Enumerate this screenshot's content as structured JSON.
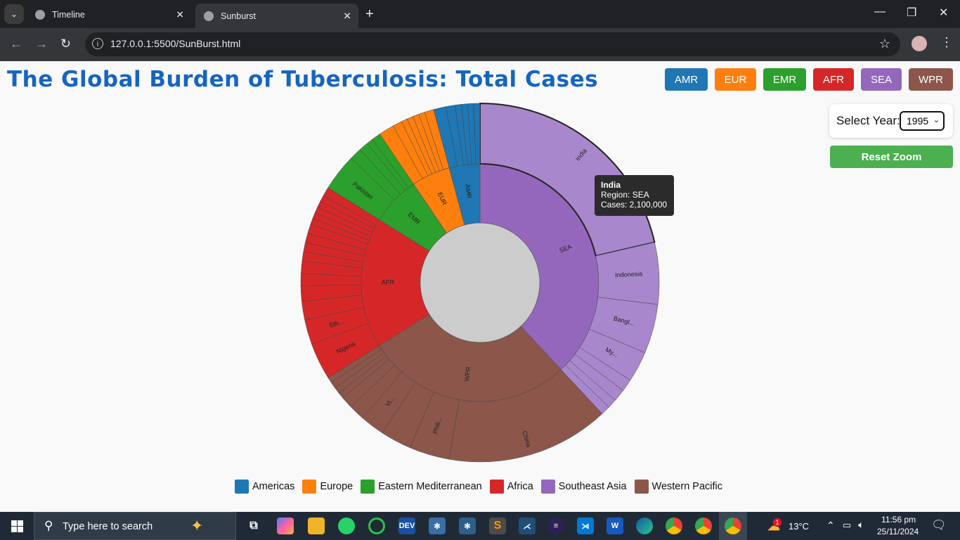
{
  "browser": {
    "tabs": [
      {
        "label": "Timeline",
        "active": false
      },
      {
        "label": "Sunburst",
        "active": true
      }
    ],
    "url": "127.0.0.1:5500/SunBurst.html"
  },
  "page": {
    "title": "The Global Burden of Tuberculosis: Total Cases",
    "region_buttons": [
      {
        "label": "AMR",
        "color": "#1f77b4"
      },
      {
        "label": "EUR",
        "color": "#ff7f0e"
      },
      {
        "label": "EMR",
        "color": "#2ca02c"
      },
      {
        "label": "AFR",
        "color": "#d62728"
      },
      {
        "label": "SEA",
        "color": "#9467bd"
      },
      {
        "label": "WPR",
        "color": "#8c564b"
      }
    ],
    "year_label": "Select Year:",
    "year_value": "1995",
    "reset_label": "Reset Zoom",
    "tooltip": {
      "name": "India",
      "region": "Region: SEA",
      "cases": "Cases: 2,100,000"
    },
    "legend": [
      {
        "label": "Americas",
        "color": "#1f77b4"
      },
      {
        "label": "Europe",
        "color": "#ff7f0e"
      },
      {
        "label": "Eastern Mediterranean",
        "color": "#2ca02c"
      },
      {
        "label": "Africa",
        "color": "#d62728"
      },
      {
        "label": "Southeast Asia",
        "color": "#9467bd"
      },
      {
        "label": "Western Pacific",
        "color": "#8c564b"
      }
    ]
  },
  "chart_data": {
    "type": "sunburst",
    "center_color": "#cccccc",
    "regions": [
      {
        "name": "SEA",
        "color": "#9467bd",
        "leaf_color": "#a987cc",
        "start_deg": 0,
        "end_deg": 137,
        "countries": [
          {
            "name": "India",
            "start": 0,
            "end": 77,
            "highlight": true
          },
          {
            "name": "Indonesia",
            "start": 77,
            "end": 97
          },
          {
            "name": "Bangl...",
            "start": 97,
            "end": 113
          },
          {
            "name": "My...",
            "start": 113,
            "end": 123
          },
          {
            "name": "",
            "start": 123,
            "end": 127
          },
          {
            "name": "",
            "start": 127,
            "end": 131
          },
          {
            "name": "",
            "start": 131,
            "end": 134
          },
          {
            "name": "",
            "start": 134,
            "end": 137
          }
        ]
      },
      {
        "name": "WPR",
        "color": "#8c564b",
        "leaf_color": "#8c564b",
        "start_deg": 137,
        "end_deg": 238,
        "countries": [
          {
            "name": "China",
            "start": 137,
            "end": 190
          },
          {
            "name": "Phili...",
            "start": 190,
            "end": 203
          },
          {
            "name": "",
            "start": 203,
            "end": 213
          },
          {
            "name": "Vi...",
            "start": 213,
            "end": 221
          },
          {
            "name": "",
            "start": 221,
            "end": 226
          },
          {
            "name": "",
            "start": 226,
            "end": 230
          },
          {
            "name": "",
            "start": 230,
            "end": 232
          },
          {
            "name": "",
            "start": 232,
            "end": 234
          },
          {
            "name": "",
            "start": 234,
            "end": 236
          },
          {
            "name": "",
            "start": 236,
            "end": 238
          }
        ]
      },
      {
        "name": "AFR",
        "color": "#d62728",
        "leaf_color": "#d62728",
        "start_deg": 238,
        "end_deg": 302,
        "countries": [
          {
            "name": "Nigeria",
            "start": 238,
            "end": 250
          },
          {
            "name": "Eth...",
            "start": 250,
            "end": 258
          },
          {
            "name": "",
            "start": 258,
            "end": 264
          },
          {
            "name": "",
            "start": 264,
            "end": 269
          },
          {
            "name": "",
            "start": 269,
            "end": 273
          },
          {
            "name": "",
            "start": 273,
            "end": 277
          },
          {
            "name": "",
            "start": 277,
            "end": 280
          },
          {
            "name": "",
            "start": 280,
            "end": 283
          },
          {
            "name": "",
            "start": 283,
            "end": 286
          },
          {
            "name": "",
            "start": 286,
            "end": 289
          },
          {
            "name": "",
            "start": 289,
            "end": 291
          },
          {
            "name": "",
            "start": 291,
            "end": 293
          },
          {
            "name": "",
            "start": 293,
            "end": 295
          },
          {
            "name": "",
            "start": 295,
            "end": 297
          },
          {
            "name": "",
            "start": 297,
            "end": 299
          },
          {
            "name": "",
            "start": 299,
            "end": 302
          }
        ]
      },
      {
        "name": "EMR",
        "color": "#2ca02c",
        "leaf_color": "#2ca02c",
        "start_deg": 302,
        "end_deg": 326,
        "countries": [
          {
            "name": "Pakistan",
            "start": 302,
            "end": 314
          },
          {
            "name": "",
            "start": 314,
            "end": 318
          },
          {
            "name": "",
            "start": 318,
            "end": 321
          },
          {
            "name": "",
            "start": 321,
            "end": 323
          },
          {
            "name": "",
            "start": 323,
            "end": 326
          }
        ]
      },
      {
        "name": "EUR",
        "color": "#ff7f0e",
        "leaf_color": "#ff7f0e",
        "start_deg": 326,
        "end_deg": 345,
        "countries": [
          {
            "name": "",
            "start": 326,
            "end": 331
          },
          {
            "name": "",
            "start": 331,
            "end": 334
          },
          {
            "name": "",
            "start": 334,
            "end": 336
          },
          {
            "name": "",
            "start": 336,
            "end": 338
          },
          {
            "name": "",
            "start": 338,
            "end": 340
          },
          {
            "name": "",
            "start": 340,
            "end": 342
          },
          {
            "name": "",
            "start": 342,
            "end": 345
          }
        ]
      },
      {
        "name": "AMR",
        "color": "#1f77b4",
        "leaf_color": "#1f77b4",
        "start_deg": 345,
        "end_deg": 360,
        "countries": [
          {
            "name": "",
            "start": 345,
            "end": 349
          },
          {
            "name": "",
            "start": 349,
            "end": 352
          },
          {
            "name": "",
            "start": 352,
            "end": 354
          },
          {
            "name": "",
            "start": 354,
            "end": 356
          },
          {
            "name": "",
            "start": 356,
            "end": 358
          },
          {
            "name": "",
            "start": 358,
            "end": 360
          }
        ]
      }
    ]
  },
  "taskbar": {
    "search_placeholder": "Type here to search",
    "weather": "13°C",
    "time": "11:56 pm",
    "date": "25/11/2024",
    "notification_count": "1"
  }
}
